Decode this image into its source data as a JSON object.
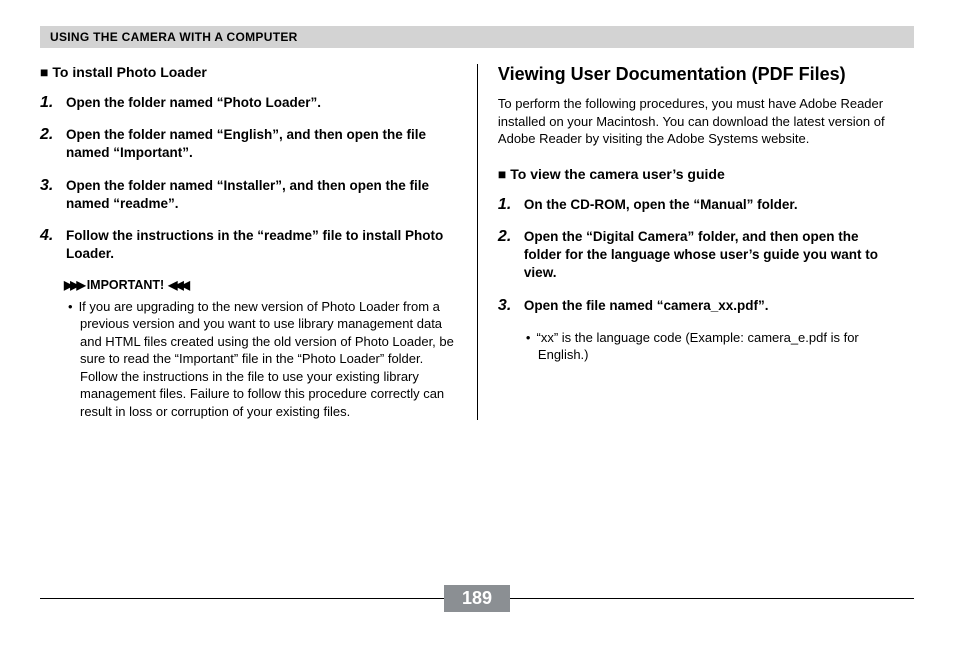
{
  "header": "USING THE CAMERA WITH A COMPUTER",
  "left": {
    "subhead": "To install Photo Loader",
    "steps": [
      "Open the folder named “Photo Loader”.",
      "Open the folder named “English”, and then open the file named “Important”.",
      "Open the folder named “Installer”, and then open the file named “readme”.",
      "Follow the instructions in the “readme” file to install Photo Loader."
    ],
    "important_label": "IMPORTANT!",
    "important_text": "If you are upgrading to the new version of Photo Loader from a previous version and you want to use library management data and HTML files created using the old version of Photo Loader, be sure to read the “Important” file in the “Photo Loader” folder. Follow the instructions in the file to use your existing library management files. Failure to follow this procedure correctly can result in loss or corruption of your existing files."
  },
  "right": {
    "main_head": "Viewing User Documentation (PDF Files)",
    "intro": "To perform the following procedures, you must have Adobe Reader installed on your Macintosh. You can download the latest version of Adobe Reader by visiting the Adobe Systems website.",
    "subhead": "To view the camera user’s guide",
    "steps": [
      "On the CD-ROM, open the “Manual” folder.",
      "Open the  “Digital Camera” folder, and then open the folder for the language whose user’s guide you want to view.",
      "Open the file named “camera_xx.pdf”."
    ],
    "note": "“xx” is the language code (Example: camera_e.pdf is for English.)"
  },
  "page_number": "189"
}
